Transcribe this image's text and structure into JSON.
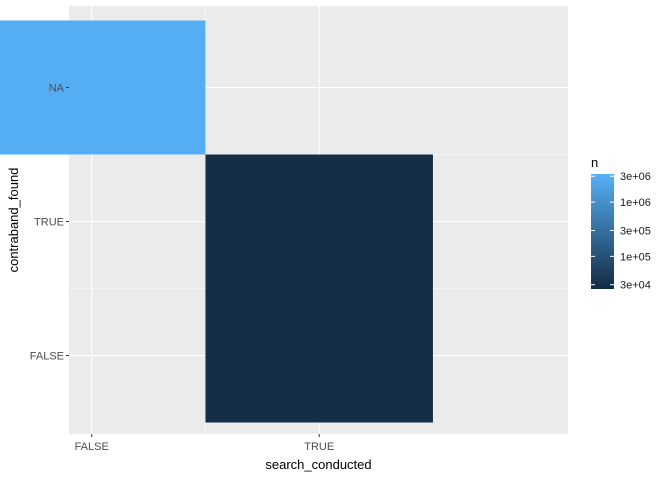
{
  "chart_data": {
    "type": "heatmap",
    "title": "",
    "xlabel": "search_conducted",
    "ylabel": "contraband_found",
    "x_categories": [
      "FALSE",
      "TRUE"
    ],
    "y_categories": [
      "FALSE",
      "TRUE",
      "NA"
    ],
    "cells": [
      {
        "x": "FALSE",
        "y": "NA",
        "n": 3000000
      },
      {
        "x": "TRUE",
        "y": "TRUE",
        "n": 28000
      },
      {
        "x": "TRUE",
        "y": "FALSE",
        "n": 28000
      }
    ],
    "color_scale": {
      "name": "n",
      "log": true,
      "min": 25000,
      "max": 3300000,
      "low_color": "#132B43",
      "high_color": "#56B1F7",
      "breaks": [
        30000,
        100000,
        300000,
        1000000,
        3000000
      ],
      "break_labels": [
        "3e+04",
        "1e+05",
        "3e+05",
        "1e+06",
        "3e+06"
      ]
    },
    "grid": true,
    "panel_background": "#EBEBEB",
    "gridline_color": "#FFFFFF",
    "legend_position": "right"
  }
}
